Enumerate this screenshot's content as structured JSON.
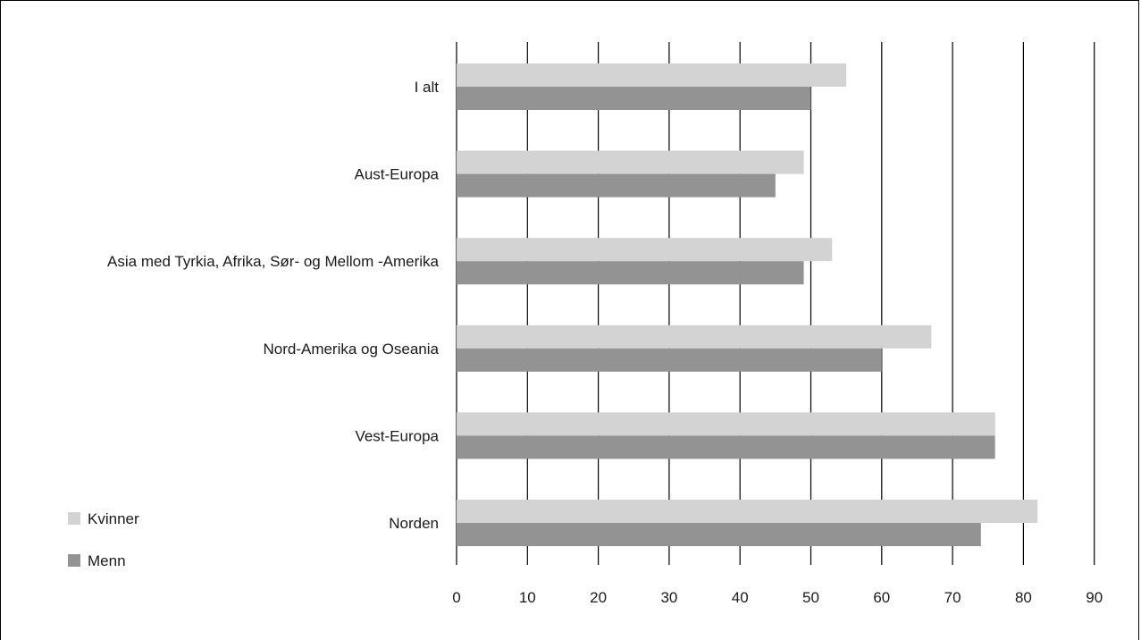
{
  "colors": {
    "Kvinner": "#d3d3d3",
    "Menn": "#939393",
    "gridline": "#000000"
  },
  "chart_data": {
    "type": "bar",
    "orientation": "horizontal",
    "categories": [
      "I alt",
      "Aust-Europa",
      "Asia med Tyrkia, Afrika, Sør- og Mellom -Amerika",
      "Nord-Amerika og Oseania",
      "Vest-Europa",
      "Norden"
    ],
    "series": [
      {
        "name": "Kvinner",
        "values": [
          55,
          49,
          53,
          67,
          76,
          82
        ]
      },
      {
        "name": "Menn",
        "values": [
          50,
          45,
          49,
          60,
          76,
          74
        ]
      }
    ],
    "xlim": [
      0,
      90
    ],
    "xticks": [
      "0",
      "10",
      "20",
      "30",
      "40",
      "50",
      "60",
      "70",
      "80",
      "90"
    ],
    "grid": "vertical",
    "legend_position": "bottom-left",
    "title": "",
    "xlabel": "",
    "ylabel": ""
  }
}
